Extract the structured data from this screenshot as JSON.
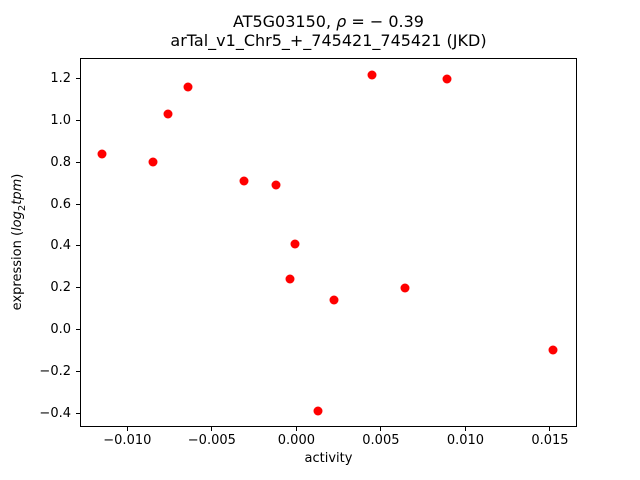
{
  "chart_data": {
    "type": "scatter",
    "title_line1": {
      "gene": "AT5G03150, ",
      "rho_symbol": "ρ",
      "rho_value": " = − 0.39"
    },
    "title_line2": "arTal_v1_Chr5_+_745421_745421 (JKD)",
    "xlabel": "activity",
    "ylabel": {
      "prefix": "expression (",
      "log_word": "log",
      "log_sub": "2",
      "var_word": "tpm",
      "suffix": ")"
    },
    "marker_color": "#ff0000",
    "axis_color": "#000000",
    "background_color": "#ffffff",
    "grid": "off",
    "legend": "none",
    "xlim": [
      -0.0128,
      0.0166
    ],
    "ylim": [
      -0.467,
      1.3005
    ],
    "xticks": [
      {
        "value": -0.01,
        "label": "−0.010"
      },
      {
        "value": -0.005,
        "label": "−0.005"
      },
      {
        "value": 0.0,
        "label": "0.000"
      },
      {
        "value": 0.005,
        "label": "0.005"
      },
      {
        "value": 0.01,
        "label": "0.010"
      },
      {
        "value": 0.015,
        "label": "0.015"
      }
    ],
    "yticks": [
      {
        "value": -0.4,
        "label": "−0.4"
      },
      {
        "value": -0.2,
        "label": "−0.2"
      },
      {
        "value": 0.0,
        "label": "0.0"
      },
      {
        "value": 0.2,
        "label": "0.2"
      },
      {
        "value": 0.4,
        "label": "0.4"
      },
      {
        "value": 0.6,
        "label": "0.6"
      },
      {
        "value": 0.8,
        "label": "0.8"
      },
      {
        "value": 1.0,
        "label": "1.0"
      },
      {
        "value": 1.2,
        "label": "1.2"
      }
    ],
    "points": [
      [
        -0.0115,
        0.84
      ],
      [
        -0.0085,
        0.8
      ],
      [
        -0.0076,
        1.03
      ],
      [
        -0.0064,
        1.16
      ],
      [
        -0.0031,
        0.71
      ],
      [
        -0.0012,
        0.69
      ],
      [
        -0.0004,
        0.24
      ],
      [
        -0.0001,
        0.41
      ],
      [
        0.0013,
        -0.39
      ],
      [
        0.0022,
        0.14
      ],
      [
        0.0045,
        1.22
      ],
      [
        0.0064,
        0.2
      ],
      [
        0.0089,
        1.2
      ],
      [
        0.0152,
        -0.1
      ]
    ]
  }
}
